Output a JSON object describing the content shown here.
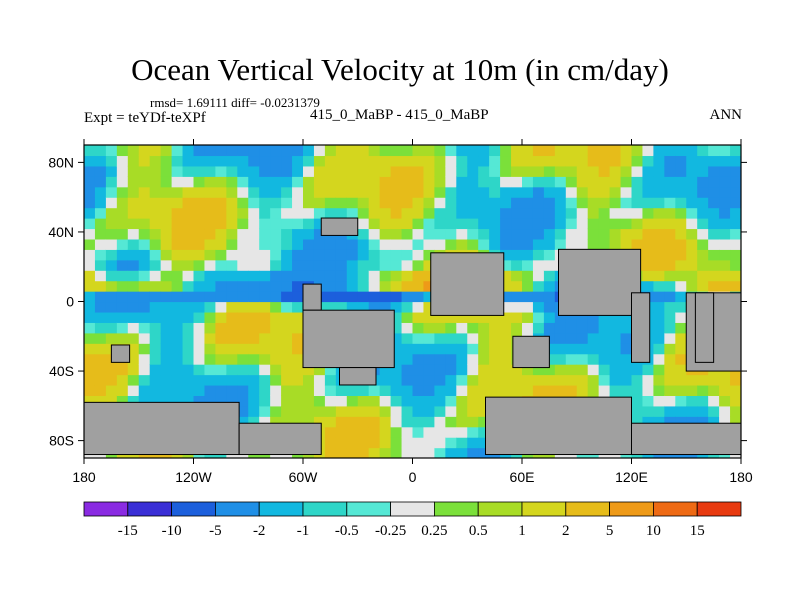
{
  "title": "Ocean Vertical Velocity at 10m (in cm/day)",
  "stats_line": "rmsd= 1.69111 diff= -0.0231379",
  "left_label": "Expt = teYDf-teXPf",
  "center_label": "415_0_MaBP - 415_0_MaBP",
  "right_label": "ANN",
  "chart_data": {
    "type": "heatmap",
    "title": "Ocean Vertical Velocity at 10m (in cm/day)",
    "xlabel": "",
    "ylabel": "",
    "xlim": [
      -180,
      180
    ],
    "ylim": [
      -90,
      90
    ],
    "x_ticks": [
      {
        "value": -180,
        "label": "180"
      },
      {
        "value": -120,
        "label": "120W"
      },
      {
        "value": -60,
        "label": "60W"
      },
      {
        "value": 0,
        "label": "0"
      },
      {
        "value": 60,
        "label": "60E"
      },
      {
        "value": 120,
        "label": "120E"
      },
      {
        "value": 180,
        "label": "180"
      }
    ],
    "y_ticks": [
      {
        "value": 80,
        "label": "80N"
      },
      {
        "value": 40,
        "label": "40N"
      },
      {
        "value": 0,
        "label": "0"
      },
      {
        "value": -40,
        "label": "40S"
      },
      {
        "value": -80,
        "label": "80S"
      }
    ],
    "colorbar": {
      "labels": [
        "-15",
        "-10",
        "-5",
        "-2",
        "-1",
        "-0.5",
        "-0.25",
        "0.25",
        "0.5",
        "1",
        "2",
        "5",
        "10",
        "15"
      ],
      "colors": [
        "#8a2be2",
        "#3a2fd6",
        "#1c5fdc",
        "#1f8fe6",
        "#12b8e0",
        "#2ed6c8",
        "#55e8d5",
        "#e6e6e6",
        "#7be03a",
        "#a8dc26",
        "#d4d61e",
        "#e6bc1a",
        "#ee9a18",
        "#ee6a14",
        "#e83a10"
      ]
    },
    "land_color": "#a0a0a0",
    "land_boxes": [
      {
        "lon": [
          -50,
          -30
        ],
        "lat": [
          38,
          48
        ]
      },
      {
        "lon": [
          10,
          50
        ],
        "lat": [
          -8,
          28
        ]
      },
      {
        "lon": [
          -60,
          -50
        ],
        "lat": [
          -5,
          10
        ]
      },
      {
        "lon": [
          -60,
          -10
        ],
        "lat": [
          -38,
          -5
        ]
      },
      {
        "lon": [
          -40,
          -20
        ],
        "lat": [
          -48,
          -38
        ]
      },
      {
        "lon": [
          80,
          125
        ],
        "lat": [
          -8,
          30
        ]
      },
      {
        "lon": [
          55,
          75
        ],
        "lat": [
          -38,
          -20
        ]
      },
      {
        "lon": [
          120,
          130
        ],
        "lat": [
          -35,
          5
        ]
      },
      {
        "lon": [
          150,
          180
        ],
        "lat": [
          -40,
          5
        ]
      },
      {
        "lon": [
          155,
          165
        ],
        "lat": [
          -35,
          5
        ]
      },
      {
        "lon": [
          -165,
          -155
        ],
        "lat": [
          -35,
          -25
        ]
      },
      {
        "lon": [
          -180,
          -95
        ],
        "lat": [
          -88,
          -58
        ]
      },
      {
        "lon": [
          -95,
          -50
        ],
        "lat": [
          -88,
          -70
        ]
      },
      {
        "lon": [
          40,
          120
        ],
        "lat": [
          -88,
          -55
        ]
      },
      {
        "lon": [
          120,
          180
        ],
        "lat": [
          -88,
          -70
        ]
      }
    ]
  }
}
